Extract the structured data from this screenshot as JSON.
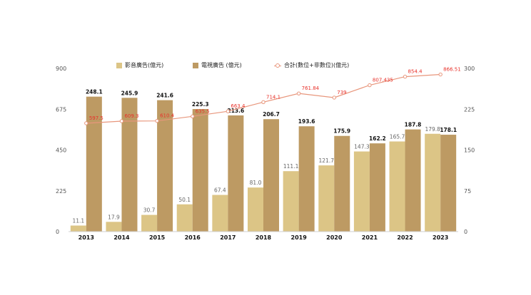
{
  "chart_data": {
    "type": "bar",
    "categories": [
      "2013",
      "2014",
      "2015",
      "2016",
      "2017",
      "2018",
      "2019",
      "2020",
      "2021",
      "2022",
      "2023"
    ],
    "left_axis": {
      "ticks": [
        "0",
        "225",
        "450",
        "675",
        "900"
      ],
      "ylim": [
        0,
        900
      ]
    },
    "right_axis": {
      "ticks": [
        "0",
        "75",
        "150",
        "225",
        "300"
      ],
      "ylim": [
        0,
        300
      ]
    },
    "series": [
      {
        "name": "影音廣告(億元)",
        "kind": "bar",
        "axis": "right",
        "color": "#dcc586",
        "values": [
          11.1,
          17.9,
          30.7,
          50.1,
          67.4,
          81.0,
          111.1,
          121.7,
          147.3,
          165.7,
          179.8
        ],
        "labels": [
          "11.1",
          "17.9",
          "30.7",
          "50.1",
          "67.4",
          "81.0",
          "111.1",
          "121.7",
          "147.3",
          "165.7",
          "179.8"
        ]
      },
      {
        "name": "電視廣告 (億元)",
        "kind": "bar",
        "axis": "right",
        "color": "#bd9a63",
        "values": [
          248.1,
          245.9,
          241.6,
          225.3,
          213.6,
          206.7,
          193.6,
          175.9,
          162.2,
          187.8,
          178.1
        ],
        "labels": [
          "248.1",
          "245.9",
          "241.6",
          "225.3",
          "213.6",
          "206.7",
          "193.6",
          "175.9",
          "162.2",
          "187.8",
          "178.1"
        ]
      },
      {
        "name": "合計(數位+非數位)(億元)",
        "kind": "line",
        "axis": "left",
        "color": "#e8967c",
        "label_color": "#e8312a",
        "values": [
          597.5,
          609.3,
          610.4,
          635.5,
          663.4,
          714.1,
          761.84,
          739,
          807.435,
          854.4,
          866.51
        ],
        "labels": [
          "597.5",
          "609.3",
          "610.4",
          "635.5",
          "663.4",
          "714.1",
          "761.84",
          "739",
          "807.435",
          "854.4",
          "866.51"
        ]
      }
    ],
    "grid": false,
    "legend_position": "top"
  }
}
